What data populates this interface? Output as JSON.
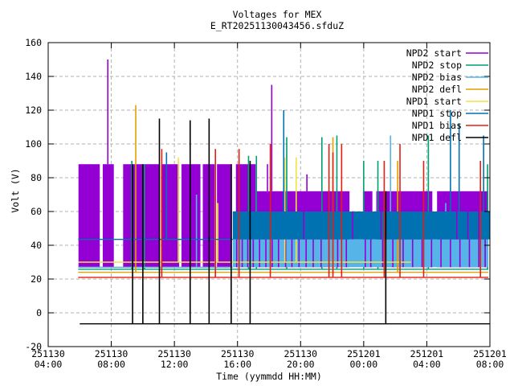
{
  "title": "Voltages for MEX",
  "subtitle": "E_RT20251130043456.sfduZ",
  "chart_data": {
    "type": "line",
    "title": "Voltages for MEX",
    "subtitle": "E_RT20251130043456.sfduZ",
    "xlabel": "Time (yymmdd HH:MM)",
    "ylabel": "Volt (V)",
    "ylim": [
      -20,
      160
    ],
    "y_tick_values": [
      -20,
      0,
      20,
      40,
      60,
      80,
      100,
      120,
      140,
      160
    ],
    "x_hours_range": [
      0,
      28
    ],
    "x_tick_hours": [
      0,
      4,
      8,
      12,
      16,
      20,
      24,
      28
    ],
    "x_tick_labels": [
      {
        "date": "251130",
        "time": "04:00"
      },
      {
        "date": "251130",
        "time": "08:00"
      },
      {
        "date": "251130",
        "time": "12:00"
      },
      {
        "date": "251130",
        "time": "16:00"
      },
      {
        "date": "251130",
        "time": "20:00"
      },
      {
        "date": "251201",
        "time": "00:00"
      },
      {
        "date": "251201",
        "time": "04:00"
      },
      {
        "date": "251201",
        "time": "08:00"
      }
    ],
    "grid": {
      "on": true,
      "color": "#b2b2b2",
      "dash": "4,3"
    },
    "legend_position": "top-right-inside",
    "series": [
      {
        "name": "NPD2 start",
        "color": "#9400D3"
      },
      {
        "name": "NPD2 stop",
        "color": "#009E73"
      },
      {
        "name": "NPD2 bias",
        "color": "#56B4E9"
      },
      {
        "name": "NPD2 defl",
        "color": "#E69F00"
      },
      {
        "name": "NPD1 start",
        "color": "#F0E442"
      },
      {
        "name": "NPD1 stop",
        "color": "#0072B2"
      },
      {
        "name": "NPD1 bias",
        "color": "#E51E10"
      },
      {
        "name": "NPD1 defl",
        "color": "#000000"
      }
    ],
    "elements": [
      {
        "series": "NPD2 start",
        "type": "bands",
        "v": [
          27,
          88
        ],
        "segments": [
          [
            1.92,
            3.27
          ],
          [
            3.46,
            4.16
          ],
          [
            4.75,
            7.05
          ],
          [
            7.15,
            8.3
          ],
          [
            8.45,
            9.65
          ],
          [
            9.8,
            10.55
          ],
          [
            10.7,
            11.65
          ],
          [
            11.9,
            13.15
          ]
        ]
      },
      {
        "series": "NPD2 start",
        "type": "bands",
        "v": [
          27,
          72
        ],
        "segments": [
          [
            13.15,
            19.1
          ],
          [
            19.95,
            20.55
          ],
          [
            20.8,
            24.35
          ],
          [
            24.65,
            27.9
          ]
        ]
      },
      {
        "series": "NPD2 start",
        "type": "vlines",
        "items": [
          [
            3.78,
            88,
            150
          ],
          [
            14.17,
            72,
            135
          ],
          [
            12.3,
            72,
            85
          ],
          [
            13.9,
            72,
            88
          ],
          [
            16.4,
            72,
            82
          ]
        ]
      },
      {
        "series": "NPD2 stop",
        "type": "hlines",
        "items": [
          [
            1.9,
            27.9,
            25.8
          ]
        ]
      },
      {
        "series": "NPD2 stop",
        "type": "vlines",
        "items": [
          [
            5.3,
            25.8,
            90
          ],
          [
            6.1,
            25.8,
            88
          ],
          [
            12.7,
            25.8,
            93
          ],
          [
            13.2,
            25.8,
            93
          ],
          [
            15.12,
            25.8,
            104
          ],
          [
            17.35,
            25.8,
            104
          ],
          [
            18.3,
            25.8,
            105
          ],
          [
            20.0,
            25.8,
            90
          ],
          [
            20.9,
            25.8,
            90
          ],
          [
            24.1,
            25.8,
            105
          ],
          [
            27.85,
            25.8,
            88
          ]
        ]
      },
      {
        "series": "NPD2 bias",
        "type": "bands",
        "v": [
          27,
          43.5
        ],
        "segments": [
          [
            11.7,
            27.9
          ]
        ]
      },
      {
        "series": "NPD2 bias",
        "type": "hlines",
        "items": [
          [
            1.9,
            11.7,
            27
          ]
        ]
      },
      {
        "series": "NPD2 bias",
        "type": "vlines",
        "items": [
          [
            9.0,
            27,
            65
          ],
          [
            9.4,
            27,
            70
          ],
          [
            21.7,
            27,
            105
          ],
          [
            25.2,
            27,
            65
          ]
        ]
      },
      {
        "series": "NPD2 start",
        "type": "stripes",
        "v": [
          27,
          43.5
        ],
        "t_list": [
          11.95,
          12.3,
          12.65,
          13.0,
          13.4,
          13.8,
          14.2,
          14.6,
          15.05,
          15.45,
          15.9,
          16.35,
          16.8,
          17.3,
          17.8,
          18.35,
          18.9,
          20.1,
          20.45,
          21.2,
          21.85,
          22.5,
          23.1,
          23.7,
          24.3,
          24.9,
          25.5,
          26.1,
          26.7,
          27.3,
          27.7
        ]
      },
      {
        "series": "NPD2 defl",
        "type": "hlines",
        "items": [
          [
            1.9,
            27.9,
            24
          ]
        ]
      },
      {
        "series": "NPD2 defl",
        "type": "vlines",
        "items": [
          [
            5.55,
            24,
            123
          ],
          [
            18.05,
            24,
            104
          ],
          [
            22.15,
            24,
            90
          ]
        ]
      },
      {
        "series": "NPD1 start",
        "type": "hlines",
        "items": [
          [
            1.9,
            23.0,
            30
          ]
        ]
      },
      {
        "series": "NPD1 start",
        "type": "vlines",
        "items": [
          [
            8.25,
            30,
            92
          ],
          [
            10.75,
            30,
            65
          ],
          [
            15.0,
            30,
            92
          ],
          [
            15.72,
            30,
            92
          ]
        ]
      },
      {
        "series": "NPD1 stop",
        "type": "bands",
        "v": [
          43.5,
          60
        ],
        "segments": [
          [
            11.7,
            28
          ]
        ]
      },
      {
        "series": "NPD2 start",
        "type": "stripes",
        "v": [
          43.5,
          60
        ],
        "t_list": [
          16.2,
          19.3,
          21.1,
          25.9,
          26.6,
          27.3
        ]
      },
      {
        "series": "NPD1 stop",
        "type": "hlines",
        "items": [
          [
            1.9,
            11.7,
            43.5
          ],
          [
            27.5,
            28,
            58.5
          ]
        ]
      },
      {
        "series": "NPD1 stop",
        "type": "vlines",
        "items": [
          [
            7.5,
            43.5,
            95
          ],
          [
            14.93,
            43.5,
            120
          ],
          [
            25.5,
            43.5,
            120
          ],
          [
            26.05,
            43.5,
            112
          ],
          [
            27.6,
            43.5,
            105
          ]
        ]
      },
      {
        "series": "NPD1 bias",
        "type": "hlines",
        "items": [
          [
            1.9,
            27.9,
            21
          ]
        ]
      },
      {
        "series": "NPD1 bias",
        "type": "vlines",
        "items": [
          [
            7.2,
            21,
            97
          ],
          [
            10.6,
            21,
            97
          ],
          [
            12.1,
            21,
            97
          ],
          [
            14.08,
            21,
            100
          ],
          [
            17.8,
            21,
            100
          ],
          [
            18.05,
            21,
            95
          ],
          [
            18.6,
            21,
            100
          ],
          [
            21.3,
            21,
            90
          ],
          [
            22.3,
            21,
            100
          ],
          [
            23.8,
            21,
            90
          ],
          [
            27.4,
            21,
            90
          ]
        ]
      },
      {
        "series": "NPD1 defl",
        "type": "hlines",
        "items": [
          [
            2.0,
            28,
            -6.5
          ]
        ]
      },
      {
        "series": "NPD1 defl",
        "type": "vlines",
        "items": [
          [
            5.35,
            -6.5,
            88
          ],
          [
            6.0,
            -6.5,
            88
          ],
          [
            7.05,
            -6.5,
            115
          ],
          [
            9.0,
            -6.5,
            114
          ],
          [
            10.2,
            -6.5,
            115
          ],
          [
            11.6,
            -6.5,
            88
          ],
          [
            12.8,
            -6.5,
            90
          ],
          [
            21.4,
            -6.5,
            72
          ]
        ]
      }
    ]
  }
}
